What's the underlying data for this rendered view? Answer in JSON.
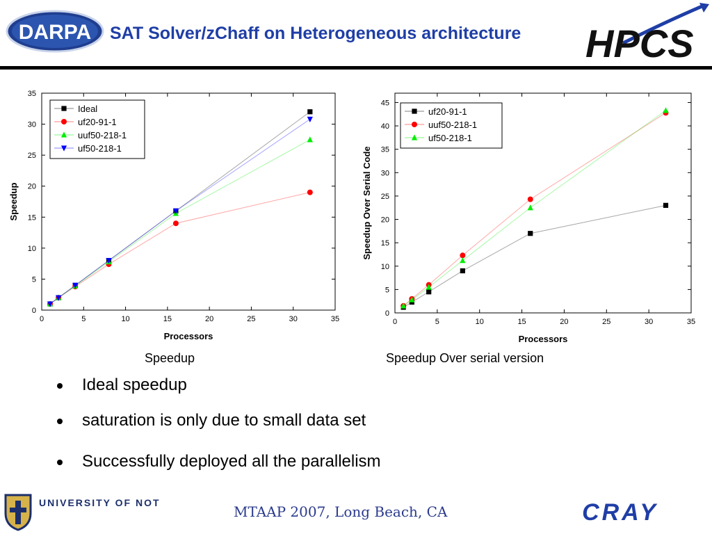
{
  "header": {
    "title": "SAT Solver/zChaff on Heterogeneous architecture",
    "darpa_logo_text": "DARPA",
    "hpcs_logo_text": "HPCS"
  },
  "captions": {
    "left": "Speedup",
    "right": "Speedup Over serial version"
  },
  "bullets": [
    "Ideal speedup",
    "saturation is only due to small data set",
    "Successfully deployed all the parallelism"
  ],
  "footer": {
    "text": "MTAAP 2007, Long Beach, CA",
    "notre_dame_logo_text": "UNIVERSITY OF NOTRE DAME",
    "cray_logo_text": "CRAY"
  },
  "chart_data": [
    {
      "type": "line",
      "xlabel": "Processors",
      "ylabel": "Speedup",
      "xlim": [
        0,
        35
      ],
      "ylim": [
        0,
        35
      ],
      "xticks": [
        0,
        5,
        10,
        15,
        20,
        25,
        30,
        35
      ],
      "yticks": [
        0,
        5,
        10,
        15,
        20,
        25,
        30,
        35
      ],
      "legend_position": "top-left",
      "series": [
        {
          "name": "Ideal",
          "color": "#000000",
          "marker": "square",
          "x": [
            1,
            2,
            4,
            8,
            16,
            32
          ],
          "y": [
            1,
            2,
            4,
            8,
            16,
            32
          ]
        },
        {
          "name": "uf20-91-1",
          "color": "#ff0000",
          "marker": "circle",
          "x": [
            1,
            2,
            4,
            8,
            16,
            32
          ],
          "y": [
            1,
            2,
            3.8,
            7.4,
            14,
            19
          ]
        },
        {
          "name": "uuf50-218-1",
          "color": "#00ee00",
          "marker": "triangle-up",
          "x": [
            1,
            2,
            4,
            8,
            16,
            32
          ],
          "y": [
            1,
            2,
            3.9,
            7.8,
            15.6,
            27.5
          ]
        },
        {
          "name": "uf50-218-1",
          "color": "#0000ff",
          "marker": "triangle-down",
          "x": [
            1,
            2,
            4,
            8,
            16,
            32
          ],
          "y": [
            1,
            2,
            4,
            8,
            16,
            30.8
          ]
        }
      ]
    },
    {
      "type": "line",
      "xlabel": "Processors",
      "ylabel": "Speedup Over Serial Code",
      "xlim": [
        0,
        35
      ],
      "ylim": [
        0,
        47
      ],
      "xticks": [
        0,
        5,
        10,
        15,
        20,
        25,
        30,
        35
      ],
      "yticks": [
        0,
        5,
        10,
        15,
        20,
        25,
        30,
        35,
        40,
        45
      ],
      "legend_position": "top-left",
      "series": [
        {
          "name": "uf20-91-1",
          "color": "#000000",
          "marker": "square",
          "x": [
            1,
            2,
            4,
            8,
            16,
            32
          ],
          "y": [
            1.2,
            2.3,
            4.5,
            9,
            17,
            23
          ]
        },
        {
          "name": "uuf50-218-1",
          "color": "#ff0000",
          "marker": "circle",
          "x": [
            1,
            2,
            4,
            8,
            16,
            32
          ],
          "y": [
            1.5,
            3,
            6,
            12.3,
            24.3,
            42.8
          ]
        },
        {
          "name": "uf50-218-1",
          "color": "#00ee00",
          "marker": "triangle-up",
          "x": [
            1,
            2,
            4,
            8,
            16,
            32
          ],
          "y": [
            1.5,
            2.8,
            5.5,
            11.2,
            22.5,
            43.3
          ]
        }
      ]
    }
  ]
}
